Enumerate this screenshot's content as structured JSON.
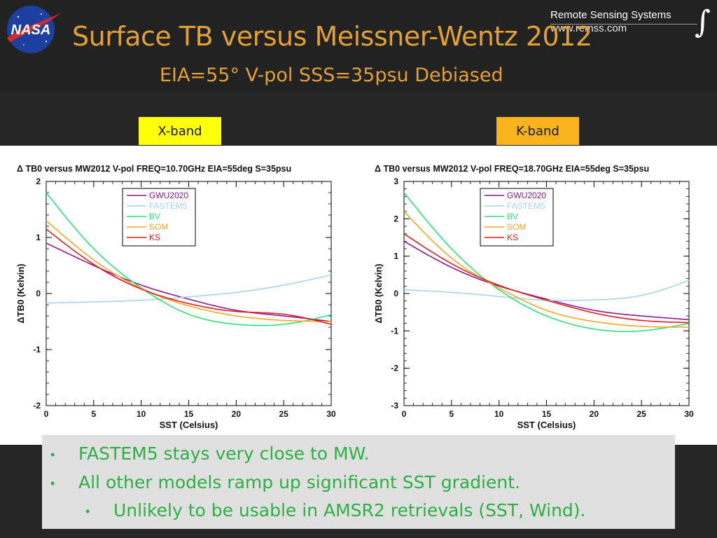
{
  "header": {
    "title": "Surface TB versus Meissner-Wentz 2012",
    "subtitle": "EIA=55° V-pol  SSS=35psu  Debiased",
    "logo_text": "NASA",
    "org_name": "Remote Sensing Systems",
    "org_url": "www.remss.com"
  },
  "band_labels": {
    "x_band": "X-band",
    "k_band": "K-band"
  },
  "colors": {
    "title": "#e3a033",
    "x_band_tag": "#ffff0b",
    "k_band_tag": "#f9b31c",
    "notes_text": "#2db043",
    "notes_bg": "#e0e0e0"
  },
  "notes": [
    "FASTEM5 stays very close to MW.",
    "All other models ramp up significant SST gradient.",
    "Unlikely to be usable in AMSR2 retrievals (SST, Wind)."
  ],
  "chart_data": [
    {
      "type": "line",
      "title": "Δ TB0 versus MW2012 V-pol   FREQ=10.70GHz  EIA=55deg S=35psu",
      "xlabel": "SST (Celsius)",
      "ylabel": "ΔTB0 (Kelvin)",
      "xlim": [
        0,
        30
      ],
      "ylim": [
        -2,
        2
      ],
      "xticks": [
        0,
        5,
        10,
        15,
        20,
        25,
        30
      ],
      "yticks": [
        -2,
        -1,
        0,
        1,
        2
      ],
      "x": [
        0,
        5,
        10,
        15,
        20,
        25,
        30
      ],
      "series": [
        {
          "name": "GWU2020",
          "color": "#8b1a8f",
          "values": [
            0.9,
            0.5,
            0.15,
            -0.1,
            -0.3,
            -0.4,
            -0.5
          ]
        },
        {
          "name": "FASTEM5",
          "color": "#a7d4e6",
          "values": [
            -0.17,
            -0.15,
            -0.12,
            -0.06,
            0.02,
            0.15,
            0.33
          ]
        },
        {
          "name": "BV",
          "color": "#2ee07a",
          "values": [
            1.8,
            0.8,
            0.1,
            -0.37,
            -0.55,
            -0.55,
            -0.38
          ]
        },
        {
          "name": "SOM",
          "color": "#f5a623",
          "values": [
            1.3,
            0.6,
            0.09,
            -0.22,
            -0.4,
            -0.48,
            -0.5
          ]
        },
        {
          "name": "KS",
          "color": "#dc1e1e",
          "values": [
            1.15,
            0.52,
            0.08,
            -0.18,
            -0.32,
            -0.37,
            -0.55
          ]
        }
      ],
      "legend_position": "top-left"
    },
    {
      "type": "line",
      "title": "Δ TB0 versus MW2012 V-pol   FREQ=18.70GHz  EIA=55deg S=35psu",
      "xlabel": "SST (Celsius)",
      "ylabel": "ΔTB0 (Kelvin)",
      "xlim": [
        0,
        30
      ],
      "ylim": [
        -3,
        3
      ],
      "xticks": [
        0,
        5,
        10,
        15,
        20,
        25,
        30
      ],
      "yticks": [
        -3,
        -2,
        -1,
        0,
        1,
        2,
        3
      ],
      "x": [
        0,
        5,
        10,
        15,
        20,
        25,
        30
      ],
      "series": [
        {
          "name": "GWU2020",
          "color": "#8b1a8f",
          "values": [
            1.4,
            0.7,
            0.2,
            -0.15,
            -0.45,
            -0.6,
            -0.7
          ]
        },
        {
          "name": "FASTEM5",
          "color": "#a7d4e6",
          "values": [
            0.1,
            0.03,
            -0.08,
            -0.18,
            -0.17,
            -0.05,
            0.35
          ]
        },
        {
          "name": "BV",
          "color": "#2ee07a",
          "values": [
            2.7,
            1.2,
            0.1,
            -0.6,
            -0.95,
            -1.0,
            -0.8
          ]
        },
        {
          "name": "SOM",
          "color": "#f5a623",
          "values": [
            2.2,
            0.95,
            0.15,
            -0.45,
            -0.75,
            -0.88,
            -0.9
          ]
        },
        {
          "name": "KS",
          "color": "#dc1e1e",
          "values": [
            1.6,
            0.8,
            0.22,
            -0.18,
            -0.52,
            -0.72,
            -0.78
          ]
        }
      ],
      "legend_position": "top-left"
    }
  ]
}
